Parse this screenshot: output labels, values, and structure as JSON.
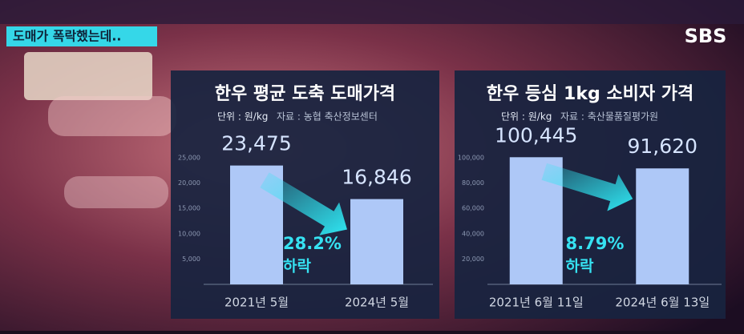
{
  "caption": "도매가 폭락했는데..",
  "logo": "SBS",
  "chart_data": [
    {
      "type": "bar",
      "title": "한우 평균 도축 도매가격",
      "subtitle": "단위 : 원/kg",
      "source": "자료 : 농협 축산정보센터",
      "categories": [
        "2021년 5월",
        "2024년 5월"
      ],
      "values": [
        23475,
        16846
      ],
      "value_labels": [
        "23,475",
        "16,846"
      ],
      "color": "#aec8f7",
      "ylim": [
        0,
        25000
      ],
      "yticks": [
        {
          "value": 5000,
          "label": "5,000"
        },
        {
          "value": 10000,
          "label": "10,000"
        },
        {
          "value": 15000,
          "label": "15,000"
        },
        {
          "value": 20000,
          "label": "20,000"
        },
        {
          "value": 25000,
          "label": "25,000"
        }
      ],
      "grid": false,
      "annotation": {
        "change": "28.2%",
        "text": "하락"
      }
    },
    {
      "type": "bar",
      "title": "한우 등심 1kg 소비자 가격",
      "subtitle": "단위 : 원/kg",
      "source": "자료 : 축산물품질평가원",
      "categories": [
        "2021년 6월 11일",
        "2024년 6월 13일"
      ],
      "values": [
        100445,
        91620
      ],
      "value_labels": [
        "100,445",
        "91,620"
      ],
      "color": "#aec8f7",
      "ylim": [
        0,
        100000
      ],
      "yticks": [
        {
          "value": 20000,
          "label": "20,000"
        },
        {
          "value": 40000,
          "label": "40,000"
        },
        {
          "value": 60000,
          "label": "60,000"
        },
        {
          "value": 80000,
          "label": "80,000"
        },
        {
          "value": 100000,
          "label": "100,000"
        }
      ],
      "grid": false,
      "annotation": {
        "change": "8.79%",
        "text": "하락"
      }
    }
  ]
}
